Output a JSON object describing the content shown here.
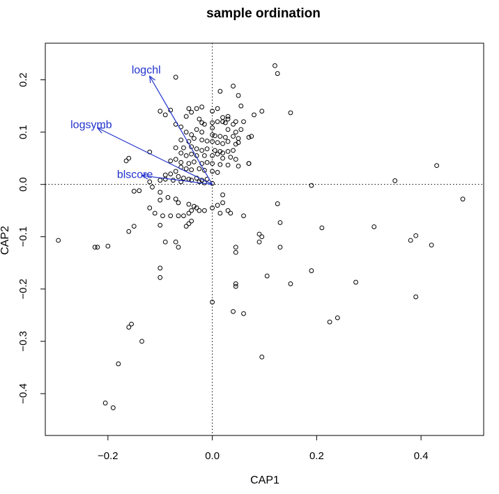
{
  "chart_data": {
    "type": "scatter",
    "title": "sample ordination",
    "xlabel": "CAP1",
    "ylabel": "CAP2",
    "xlim": [
      -0.32,
      0.52
    ],
    "ylim": [
      -0.48,
      0.27
    ],
    "xticks": [
      -0.2,
      0.0,
      0.2,
      0.4
    ],
    "xtick_labels": [
      "−0.2",
      "0.0",
      "0.2",
      "0.4"
    ],
    "yticks": [
      -0.4,
      -0.3,
      -0.2,
      -0.1,
      0.0,
      0.1,
      0.2
    ],
    "ytick_labels": [
      "−0.4",
      "−0.3",
      "−0.2",
      "−0.1",
      "0.0",
      "0.1",
      "0.2"
    ],
    "reference_lines": {
      "x": 0,
      "y": 0,
      "style": "dotted"
    },
    "grid": false,
    "point_color": "#000000",
    "arrow_color": "#2233cc",
    "arrows": [
      {
        "label": "logchl",
        "x": -0.12,
        "y": 0.207
      },
      {
        "label": "logsymb",
        "x": -0.22,
        "y": 0.108
      },
      {
        "label": "blscore",
        "x": -0.135,
        "y": 0.017
      }
    ],
    "points": [
      [
        0.12,
        0.227
      ],
      [
        0.125,
        0.212
      ],
      [
        -0.07,
        0.205
      ],
      [
        0.04,
        0.188
      ],
      [
        0.015,
        0.178
      ],
      [
        0.05,
        0.17
      ],
      [
        0.01,
        0.145
      ],
      [
        -0.02,
        0.148
      ],
      [
        -0.03,
        0.145
      ],
      [
        -0.045,
        0.145
      ],
      [
        0.055,
        0.15
      ],
      [
        0.0,
        0.14
      ],
      [
        -0.1,
        0.14
      ],
      [
        -0.08,
        0.142
      ],
      [
        -0.09,
        0.133
      ],
      [
        -0.05,
        0.13
      ],
      [
        -0.04,
        0.138
      ],
      [
        0.15,
        0.137
      ],
      [
        0.08,
        0.133
      ],
      [
        0.095,
        0.14
      ],
      [
        0.03,
        0.13
      ],
      [
        0.045,
        0.12
      ],
      [
        0.03,
        0.125
      ],
      [
        0.02,
        0.128
      ],
      [
        -0.025,
        0.125
      ],
      [
        -0.02,
        0.118
      ],
      [
        -0.015,
        0.115
      ],
      [
        0.01,
        0.12
      ],
      [
        0.0,
        0.118
      ],
      [
        0.02,
        0.12
      ],
      [
        0.025,
        0.118
      ],
      [
        0.04,
        0.115
      ],
      [
        0.06,
        0.12
      ],
      [
        -0.06,
        0.11
      ],
      [
        -0.07,
        0.115
      ],
      [
        -0.03,
        0.105
      ],
      [
        0.0,
        0.108
      ],
      [
        0.03,
        0.105
      ],
      [
        0.045,
        0.1
      ],
      [
        0.055,
        0.105
      ],
      [
        0.07,
        0.09
      ],
      [
        0.075,
        0.092
      ],
      [
        -0.05,
        0.1
      ],
      [
        -0.04,
        0.095
      ],
      [
        -0.02,
        0.1
      ],
      [
        0.0,
        0.095
      ],
      [
        0.005,
        0.093
      ],
      [
        0.015,
        0.092
      ],
      [
        0.025,
        0.09
      ],
      [
        0.04,
        0.092
      ],
      [
        0.05,
        0.088
      ],
      [
        -0.06,
        0.085
      ],
      [
        -0.045,
        0.082
      ],
      [
        -0.035,
        0.088
      ],
      [
        -0.02,
        0.085
      ],
      [
        -0.01,
        0.083
      ],
      [
        0.0,
        0.082
      ],
      [
        0.01,
        0.08
      ],
      [
        0.02,
        0.078
      ],
      [
        0.03,
        0.082
      ],
      [
        0.045,
        0.077
      ],
      [
        0.05,
        0.08
      ],
      [
        -0.07,
        0.07
      ],
      [
        -0.055,
        0.07
      ],
      [
        -0.04,
        0.072
      ],
      [
        -0.03,
        0.068
      ],
      [
        -0.02,
        0.065
      ],
      [
        -0.01,
        0.068
      ],
      [
        0.005,
        0.065
      ],
      [
        0.015,
        0.063
      ],
      [
        0.02,
        0.06
      ],
      [
        0.03,
        0.063
      ],
      [
        0.04,
        0.065
      ],
      [
        -0.12,
        0.062
      ],
      [
        -0.06,
        0.06
      ],
      [
        -0.05,
        0.055
      ],
      [
        -0.04,
        0.058
      ],
      [
        -0.03,
        0.055
      ],
      [
        -0.015,
        0.055
      ],
      [
        0.0,
        0.055
      ],
      [
        0.01,
        0.058
      ],
      [
        0.02,
        0.05
      ],
      [
        0.035,
        0.052
      ],
      [
        0.045,
        0.048
      ],
      [
        -0.16,
        0.05
      ],
      [
        -0.165,
        0.045
      ],
      [
        -0.08,
        0.045
      ],
      [
        -0.07,
        0.048
      ],
      [
        -0.06,
        0.042
      ],
      [
        -0.045,
        0.04
      ],
      [
        -0.035,
        0.043
      ],
      [
        -0.02,
        0.04
      ],
      [
        -0.01,
        0.042
      ],
      [
        0.0,
        0.04
      ],
      [
        0.015,
        0.038
      ],
      [
        0.03,
        0.037
      ],
      [
        0.05,
        0.035
      ],
      [
        0.07,
        0.04
      ],
      [
        0.07,
        0.04
      ],
      [
        -0.06,
        0.033
      ],
      [
        -0.05,
        0.03
      ],
      [
        -0.04,
        0.028
      ],
      [
        -0.025,
        0.03
      ],
      [
        -0.015,
        0.027
      ],
      [
        0.0,
        0.025
      ],
      [
        0.01,
        0.023
      ],
      [
        -0.07,
        0.025
      ],
      [
        -0.08,
        0.02
      ],
      [
        -0.09,
        0.018
      ],
      [
        -0.065,
        0.015
      ],
      [
        -0.055,
        0.012
      ],
      [
        -0.045,
        0.01
      ],
      [
        -0.03,
        0.012
      ],
      [
        -0.02,
        0.008
      ],
      [
        -0.01,
        0.01
      ],
      [
        -0.1,
        0.008
      ],
      [
        -0.09,
        0.01
      ],
      [
        -0.075,
        0.008
      ],
      [
        -0.06,
        0.005
      ],
      [
        -0.04,
        0.008
      ],
      [
        -0.025,
        0.005
      ],
      [
        -0.015,
        0.003
      ],
      [
        0.0,
        0.002
      ],
      [
        -0.12,
        0.005
      ],
      [
        -0.115,
        -0.005
      ],
      [
        -0.15,
        -0.013
      ],
      [
        -0.14,
        -0.012
      ],
      [
        -0.1,
        -0.015
      ],
      [
        -0.1,
        -0.03
      ],
      [
        -0.085,
        -0.025
      ],
      [
        -0.07,
        -0.028
      ],
      [
        -0.065,
        -0.035
      ],
      [
        -0.045,
        -0.038
      ],
      [
        -0.035,
        -0.042
      ],
      [
        -0.03,
        -0.045
      ],
      [
        -0.025,
        -0.05
      ],
      [
        -0.015,
        -0.05
      ],
      [
        -0.04,
        -0.05
      ],
      [
        -0.045,
        -0.055
      ],
      [
        -0.055,
        -0.06
      ],
      [
        -0.065,
        -0.06
      ],
      [
        -0.08,
        -0.06
      ],
      [
        -0.095,
        -0.06
      ],
      [
        -0.12,
        -0.045
      ],
      [
        -0.11,
        -0.055
      ],
      [
        -0.04,
        -0.07
      ],
      [
        -0.045,
        -0.075
      ],
      [
        -0.05,
        -0.08
      ],
      [
        -0.1,
        -0.078
      ],
      [
        -0.15,
        -0.08
      ],
      [
        -0.16,
        -0.09
      ],
      [
        0.0,
        -0.045
      ],
      [
        0.01,
        -0.04
      ],
      [
        0.02,
        -0.035
      ],
      [
        0.02,
        -0.02
      ],
      [
        0.015,
        -0.055
      ],
      [
        0.03,
        -0.05
      ],
      [
        0.035,
        -0.055
      ],
      [
        0.06,
        -0.06
      ],
      [
        0.125,
        -0.037
      ],
      [
        0.13,
        -0.073
      ],
      [
        0.19,
        -0.002
      ],
      [
        0.35,
        0.007
      ],
      [
        0.43,
        0.036
      ],
      [
        0.48,
        -0.028
      ],
      [
        0.21,
        -0.083
      ],
      [
        0.31,
        -0.081
      ],
      [
        0.09,
        -0.095
      ],
      [
        0.095,
        -0.1
      ],
      [
        0.09,
        -0.11
      ],
      [
        0.13,
        -0.12
      ],
      [
        0.045,
        -0.12
      ],
      [
        0.045,
        -0.13
      ],
      [
        -0.07,
        -0.11
      ],
      [
        -0.065,
        -0.12
      ],
      [
        -0.09,
        -0.11
      ],
      [
        -0.1,
        -0.16
      ],
      [
        -0.1,
        -0.178
      ],
      [
        0.105,
        -0.175
      ],
      [
        0.15,
        -0.19
      ],
      [
        0.19,
        -0.165
      ],
      [
        0.045,
        -0.19
      ],
      [
        0.045,
        -0.195
      ],
      [
        0.275,
        -0.187
      ],
      [
        0.38,
        -0.107
      ],
      [
        0.39,
        -0.098
      ],
      [
        0.42,
        -0.116
      ],
      [
        0.39,
        -0.215
      ],
      [
        0.24,
        -0.255
      ],
      [
        0.225,
        -0.263
      ],
      [
        -0.295,
        -0.107
      ],
      [
        -0.225,
        -0.12
      ],
      [
        -0.22,
        -0.12
      ],
      [
        -0.2,
        -0.118
      ],
      [
        -0.155,
        -0.267
      ],
      [
        -0.16,
        -0.273
      ],
      [
        -0.135,
        -0.3
      ],
      [
        -0.18,
        -0.343
      ],
      [
        0.0,
        -0.225
      ],
      [
        0.04,
        -0.243
      ],
      [
        0.06,
        -0.247
      ],
      [
        0.095,
        -0.33
      ],
      [
        -0.205,
        -0.418
      ],
      [
        -0.19,
        -0.427
      ]
    ]
  }
}
